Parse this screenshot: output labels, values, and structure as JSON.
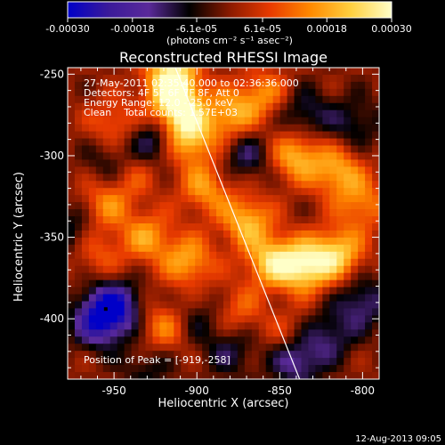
{
  "colorbar": {
    "tick_labels": [
      "-0.00030",
      "-0.00018",
      "-6.1e-05",
      "6.1e-05",
      "0.00018",
      "0.00030"
    ],
    "tick_values": [
      -0.0003,
      -0.00018,
      -6.1e-05,
      6.1e-05,
      0.00018,
      0.0003
    ],
    "range": [
      -0.0003,
      0.0003
    ],
    "unit_label": "(photons cm⁻² s⁻¹ asec⁻²)",
    "colors": [
      "#0000c8",
      "#3a1a9a",
      "#5a2a9a",
      "#000000",
      "#8a1a00",
      "#e83a00",
      "#ff8a00",
      "#ffd040",
      "#ffffc8"
    ]
  },
  "chart_data": {
    "type": "heatmap",
    "title": "Reconstructed RHESSI Image",
    "xlabel": "Heliocentric X (arcsec)",
    "ylabel": "Heliocentric Y (arcsec)",
    "xlim": [
      -978,
      -790
    ],
    "ylim": [
      -437,
      -246
    ],
    "x_ticks": [
      -950,
      -900,
      -850,
      -800
    ],
    "y_ticks": [
      -250,
      -300,
      -350,
      -400
    ],
    "x_tick_labels": [
      "-950",
      "-900",
      "-850",
      "-800"
    ],
    "y_tick_labels": [
      "-250",
      "-300",
      "-350",
      "-400"
    ],
    "limb_line": [
      [
        -913,
        -246
      ],
      [
        -838,
        -437
      ]
    ],
    "peak_position": [
      -919,
      -258
    ],
    "annotations": [
      "27-May-2011 02:35:40.000 to 02:36:36.000",
      "Detectors: 4F 5F 6F 7F 8F, Att 0",
      "Energy Range: 12.0 - 25.0 keV",
      "Clean    Total counts: 1.57E+03",
      "Position of Peak = [-919,-258]"
    ],
    "blobs": [
      {
        "x": -915,
        "y": -253,
        "v": 0.0003
      },
      {
        "x": -912,
        "y": -272,
        "v": 0.00026
      },
      {
        "x": -905,
        "y": -290,
        "v": 0.00022
      },
      {
        "x": -895,
        "y": -320,
        "v": 0.00016
      },
      {
        "x": -870,
        "y": -340,
        "v": 0.0002
      },
      {
        "x": -855,
        "y": -365,
        "v": 0.00022
      },
      {
        "x": -835,
        "y": -368,
        "v": 0.00026
      },
      {
        "x": -815,
        "y": -360,
        "v": 0.00022
      },
      {
        "x": -800,
        "y": -330,
        "v": 0.00014
      },
      {
        "x": -880,
        "y": -275,
        "v": 0.00018
      },
      {
        "x": -860,
        "y": -262,
        "v": 0.00014
      },
      {
        "x": -840,
        "y": -300,
        "v": 0.0002
      },
      {
        "x": -815,
        "y": -310,
        "v": 0.00018
      },
      {
        "x": -955,
        "y": -330,
        "v": 0.00014
      },
      {
        "x": -930,
        "y": -350,
        "v": 0.00016
      },
      {
        "x": -950,
        "y": -280,
        "v": 0.00012
      },
      {
        "x": -920,
        "y": -405,
        "v": 0.00014
      },
      {
        "x": -905,
        "y": -365,
        "v": 0.00018
      },
      {
        "x": -960,
        "y": -360,
        "v": 0.0001
      },
      {
        "x": -940,
        "y": -310,
        "v": 0.00012
      },
      {
        "x": -875,
        "y": -395,
        "v": 0.0001
      },
      {
        "x": -845,
        "y": -410,
        "v": 8e-05
      },
      {
        "x": -950,
        "y": -393,
        "v": -0.00026
      },
      {
        "x": -960,
        "y": -402,
        "v": -0.0002
      },
      {
        "x": -925,
        "y": -290,
        "v": -0.00016
      },
      {
        "x": -950,
        "y": -305,
        "v": -0.00012
      },
      {
        "x": -870,
        "y": -300,
        "v": -0.00012
      },
      {
        "x": -835,
        "y": -275,
        "v": -0.00012
      },
      {
        "x": -805,
        "y": -280,
        "v": -0.0001
      },
      {
        "x": -800,
        "y": -390,
        "v": -0.00014
      },
      {
        "x": -840,
        "y": -425,
        "v": -0.00018
      },
      {
        "x": -820,
        "y": -410,
        "v": -0.00012
      },
      {
        "x": -880,
        "y": -420,
        "v": -0.0001
      },
      {
        "x": -900,
        "y": -400,
        "v": -8e-05
      },
      {
        "x": -975,
        "y": -345,
        "v": -0.0001
      },
      {
        "x": -930,
        "y": -430,
        "v": -8e-05
      }
    ]
  },
  "footer": {
    "timestamp": "12-Aug-2013 09:05"
  }
}
